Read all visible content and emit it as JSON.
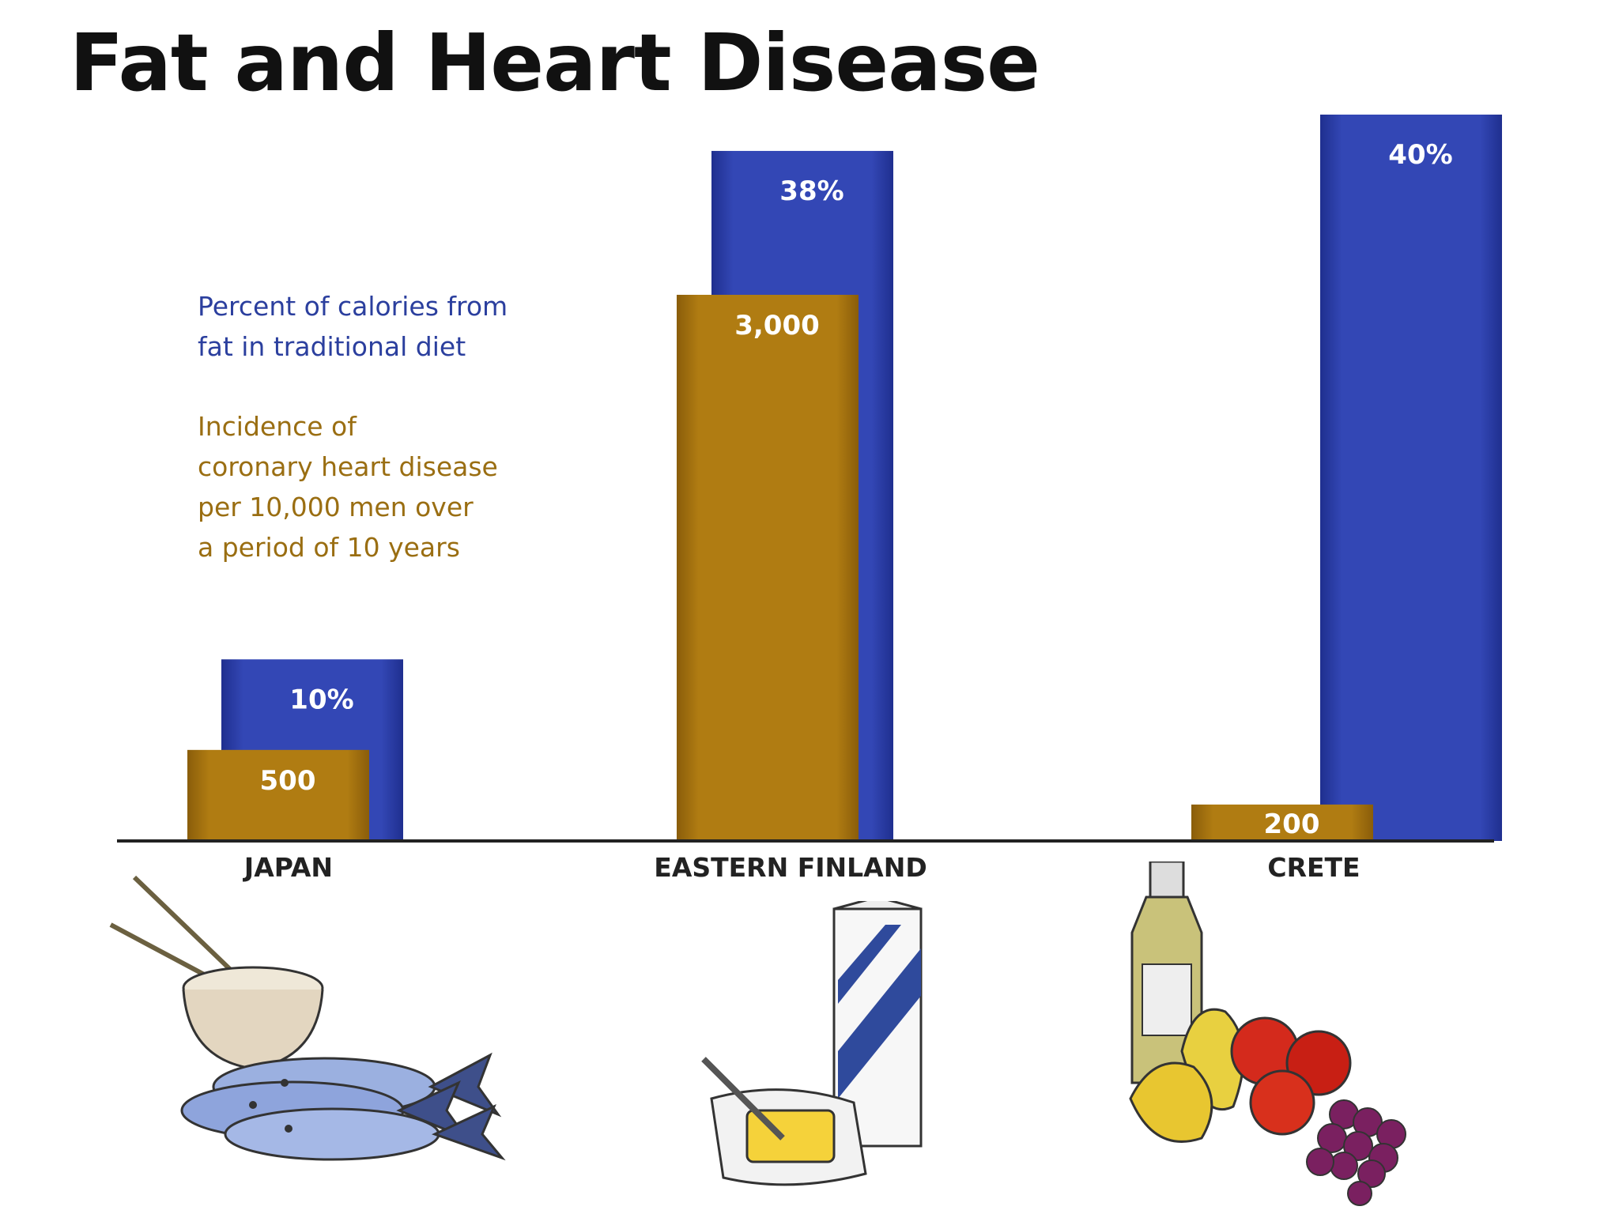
{
  "title": "Fat and Heart Disease",
  "colors": {
    "fat": "#3347b5",
    "fat_dark": "#1f2f8f",
    "chd": "#b07c12",
    "chd_dark": "#8a5d0a",
    "baseline": "#222222",
    "bar_label": "#ffffff"
  },
  "legend": {
    "fat": "Percent of calories from\nfat in traditional diet",
    "chd": "Incidence of\ncoronary heart disease\nper 10,000 men over\na period of 10 years"
  },
  "chart_data": {
    "type": "bar",
    "title": "Fat and Heart Disease",
    "categories": [
      "JAPAN",
      "EASTERN FINLAND",
      "CRETE"
    ],
    "series": [
      {
        "name": "Percent of calories from fat in traditional diet",
        "values": [
          10,
          38,
          40
        ],
        "labels": [
          "10%",
          "38%",
          "40%"
        ]
      },
      {
        "name": "Incidence of coronary heart disease per 10,000 men over a period of 10 years",
        "values": [
          500,
          3000,
          200
        ],
        "labels": [
          "500",
          "3,000",
          "200"
        ]
      }
    ]
  },
  "illustrations": [
    "rice-bowl-and-fish",
    "milk-carton-and-butter",
    "olive-oil-fruit-and-grapes"
  ]
}
